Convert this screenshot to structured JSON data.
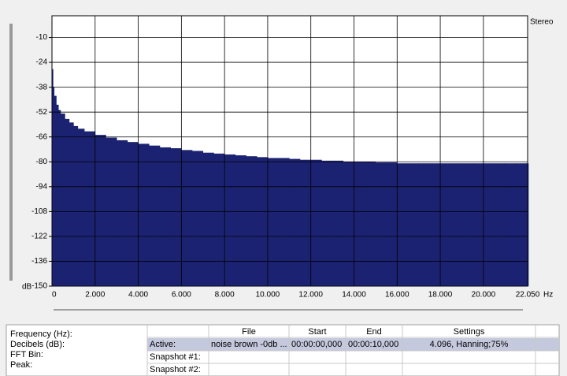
{
  "chart_data": {
    "type": "bar",
    "channel_label": "Stereo",
    "y_unit_label": "dB",
    "x_unit_label": "Hz",
    "x": [
      0,
      50,
      100,
      200,
      300,
      400,
      600,
      800,
      1000,
      1200,
      1500,
      2000,
      2500,
      3000,
      3500,
      4000,
      4500,
      5000,
      5500,
      6000,
      6500,
      7000,
      7500,
      8000,
      8500,
      9000,
      9500,
      10000,
      10500,
      11000,
      11500,
      12000,
      12500,
      13000,
      13500,
      14000,
      14500,
      15000,
      15500,
      16000,
      16500,
      17000,
      17500,
      18000,
      18500,
      19000,
      19500,
      20000,
      20500,
      21000,
      21500,
      22000,
      22050
    ],
    "values": [
      -28,
      -38,
      -43,
      -48,
      -51,
      -53,
      -56,
      -58,
      -60,
      -61.5,
      -63,
      -65,
      -66.5,
      -68,
      -69,
      -70,
      -71,
      -72,
      -72.5,
      -73.5,
      -74,
      -75,
      -75.5,
      -76,
      -76.5,
      -77,
      -77.5,
      -78,
      -78,
      -78.5,
      -79,
      -79,
      -79.5,
      -79.5,
      -80,
      -80,
      -80,
      -80.5,
      -80.5,
      -81,
      -81,
      -81,
      -81,
      -81,
      -81,
      -81,
      -81,
      -81,
      -81,
      -81,
      -81,
      -81,
      -81
    ],
    "color": "#1c2272",
    "xlim": [
      0,
      22050
    ],
    "xticks": [
      0,
      {
        "value": 2000,
        "label": "2.000"
      },
      {
        "value": 4000,
        "label": "4.000"
      },
      {
        "value": 6000,
        "label": "6.000"
      },
      {
        "value": 8000,
        "label": "8.000"
      },
      {
        "value": 10000,
        "label": "10.000"
      },
      {
        "value": 12000,
        "label": "12.000"
      },
      {
        "value": 14000,
        "label": "14.000"
      },
      {
        "value": 16000,
        "label": "16.000"
      },
      {
        "value": 18000,
        "label": "18.000"
      },
      {
        "value": 20000,
        "label": "20.000"
      },
      {
        "value": 22050,
        "label": "22.050"
      }
    ],
    "ylim": [
      -150,
      0
    ],
    "yticks": [
      -10,
      -24,
      -38,
      -52,
      -66,
      -80,
      -94,
      -108,
      -122,
      -136,
      -150
    ],
    "grid": true
  },
  "panel": {
    "labels": [
      "Frequency (Hz):",
      "Decibels (dB):",
      "FFT Bin:",
      "Peak:"
    ]
  },
  "table": {
    "headers": [
      "File",
      "Start",
      "End",
      "Settings"
    ],
    "rows": [
      [
        "Active:",
        "noise brown -0db ...",
        "00:00:00,000",
        "00:00:10,000",
        "4.096, Hanning;75%"
      ],
      [
        "Snapshot #1:"
      ],
      [
        "Snapshot #2:"
      ]
    ]
  }
}
